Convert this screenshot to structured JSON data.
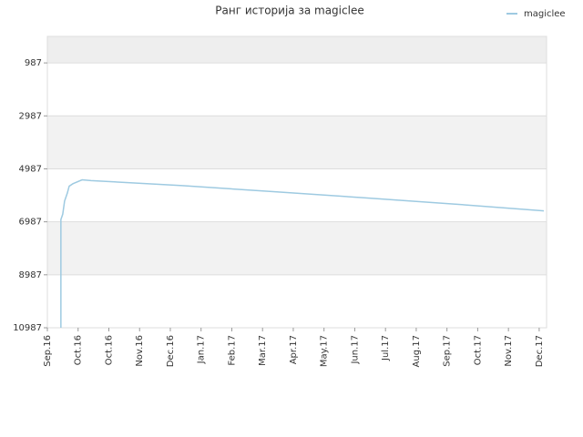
{
  "chart_data": {
    "type": "line",
    "title": "Ранг историја за magiclee",
    "x": [
      0.44,
      0.44,
      0.5,
      0.56,
      0.65,
      0.71,
      0.83,
      1.13,
      1.42,
      4.39,
      7.35,
      10.31,
      13.27,
      16.15
    ],
    "series": [
      {
        "name": "magiclee",
        "color": "#9ecae1",
        "values": [
          10987,
          6900,
          6700,
          6200,
          5900,
          5640,
          5550,
          5401,
          5430,
          5620,
          5850,
          6080,
          6320,
          6573
        ]
      }
    ],
    "xlim": [
      0,
      16.24
    ],
    "xticks": [
      {
        "value": 0,
        "label": "Sep.16"
      },
      {
        "value": 1,
        "label": "Oct.16"
      },
      {
        "value": 2,
        "label": "Oct.16"
      },
      {
        "value": 3,
        "label": "Nov.16"
      },
      {
        "value": 4,
        "label": "Dec.16"
      },
      {
        "value": 5,
        "label": "Jan.17"
      },
      {
        "value": 6,
        "label": "Feb.17"
      },
      {
        "value": 7,
        "label": "Mar.17"
      },
      {
        "value": 8,
        "label": "Apr.17"
      },
      {
        "value": 9,
        "label": "May.17"
      },
      {
        "value": 10,
        "label": "Jun.17"
      },
      {
        "value": 11,
        "label": "Jul.17"
      },
      {
        "value": 12,
        "label": "Aug.17"
      },
      {
        "value": 13,
        "label": "Sep.17"
      },
      {
        "value": 14,
        "label": "Oct.17"
      },
      {
        "value": 15,
        "label": "Nov.17"
      },
      {
        "value": 16,
        "label": "Dec.17"
      }
    ],
    "ylim": [
      10987,
      -13
    ],
    "yticks": [
      987,
      2987,
      4987,
      6987,
      8987,
      10987
    ],
    "grid": true,
    "legend": "top-right"
  }
}
